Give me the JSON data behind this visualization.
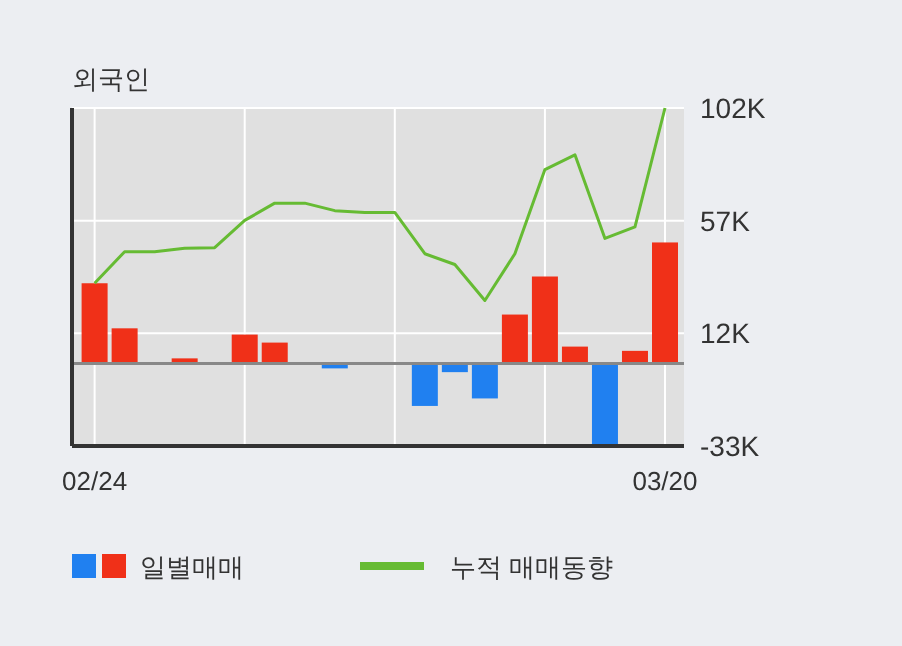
{
  "chart_data": {
    "type": "bar",
    "title": "외국인",
    "categories": [
      "02/24",
      null,
      null,
      null,
      null,
      null,
      null,
      null,
      null,
      null,
      null,
      null,
      null,
      null,
      null,
      null,
      null,
      null,
      null,
      "03/20"
    ],
    "series": [
      {
        "name": "일별매매",
        "colors": [
          "#f03018",
          "#f03018",
          null,
          "#f03018",
          null,
          "#f03018",
          "#f03018",
          null,
          "#2080f0",
          null,
          null,
          "#2080f0",
          "#2080f0",
          "#2080f0",
          "#f03018",
          "#f03018",
          "#f03018",
          "#2080f0",
          "#f03018",
          "#f03018"
        ],
        "values": [
          32,
          14,
          null,
          2,
          null,
          11.5,
          8.3,
          null,
          -2,
          null,
          null,
          -17,
          -3.5,
          -14,
          19.5,
          34.7,
          6.7,
          -32.3,
          5,
          48.3
        ]
      },
      {
        "name": "누적 매매동향",
        "type": "line",
        "color": "#66bb33",
        "values": [
          32,
          44.6,
          44.6,
          46,
          46.2,
          57.1,
          64,
          64,
          61,
          60.3,
          60.3,
          43.8,
          39.5,
          25.1,
          43.8,
          77.4,
          83.3,
          49.9,
          54.5,
          102
        ]
      }
    ],
    "ylim": [
      -33,
      102
    ],
    "yticks": [
      {
        "value": 102,
        "label": "102K"
      },
      {
        "value": 57,
        "label": "57K"
      },
      {
        "value": 12,
        "label": "12K"
      },
      {
        "value": -33,
        "label": "-33K"
      }
    ],
    "grid": true,
    "legend": "bottom",
    "marker": "none"
  }
}
